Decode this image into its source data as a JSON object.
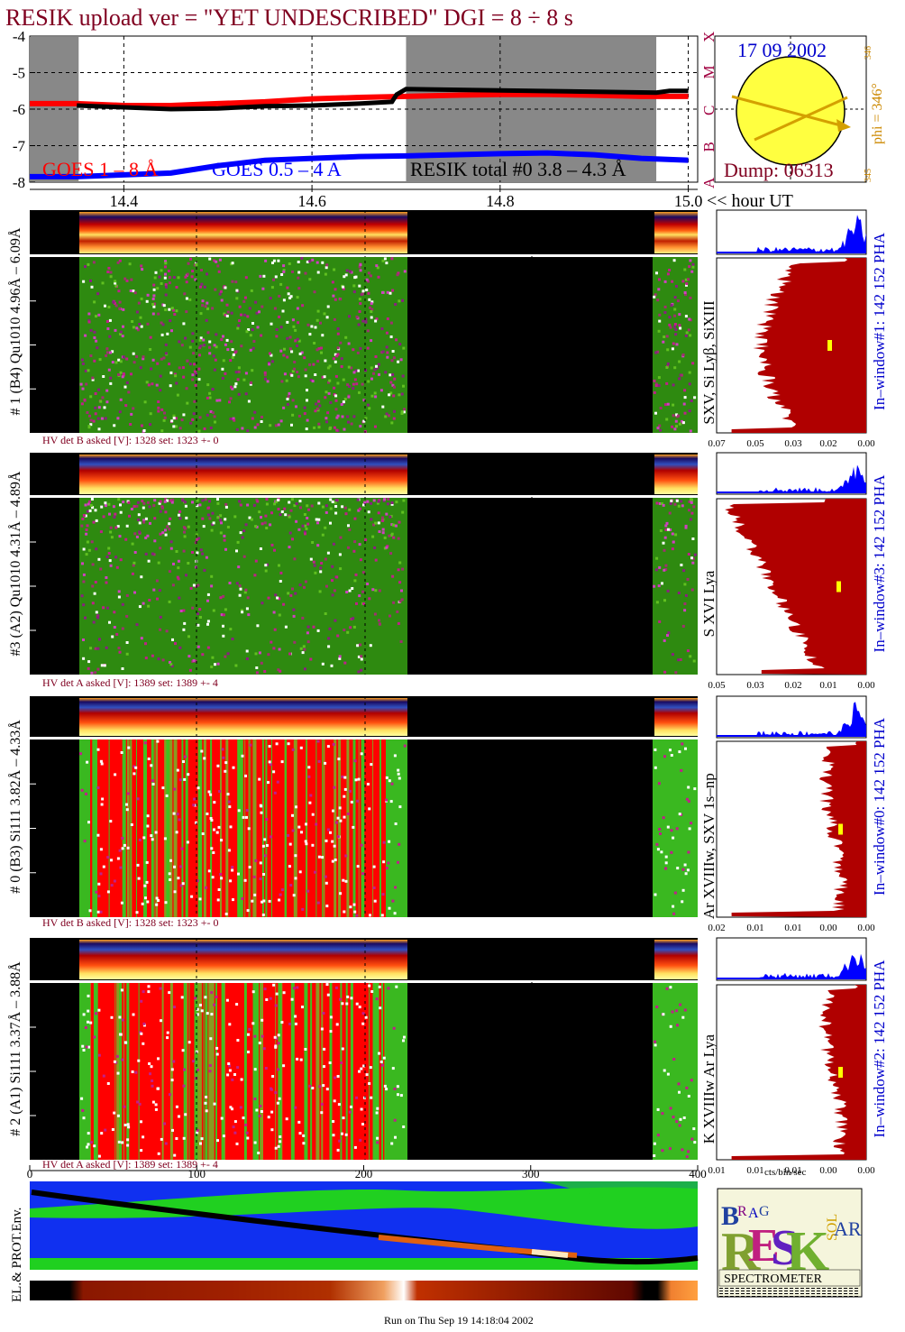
{
  "title": "RESIK upload ver = \"YET UNDESCRIBED\"  DGI =   8 ÷   8 s",
  "footer": "Run on Thu Sep 19 14:18:04 2002",
  "colors": {
    "title": "#800020",
    "goes_long": "#ff0000",
    "goes_short": "#0000ff",
    "resik_total": "#000000",
    "noaa_labels": "#a00040",
    "date_text": "#0000cc",
    "orbit_text": "#cc8800",
    "hist_fill": "#b00000",
    "hist_top": "#0000ff",
    "sun_fill": "#ffff40",
    "arrow": "#d4a000",
    "spectro_red": "#ff0000",
    "spectro_green": "#2ea000"
  },
  "chart_data": [
    {
      "type": "line",
      "title": "",
      "ylim": [
        -8,
        -4
      ],
      "y_ticks": [
        "-4",
        "-5",
        "-6",
        "-7",
        "-8"
      ],
      "goes_class_labels": [
        "X",
        "M",
        "C",
        "B",
        "A"
      ],
      "x_ticks": [
        "14.4",
        "14.6",
        "14.8",
        "15.0"
      ],
      "x_axis_caption": "<< hour UT",
      "xlim": [
        14.3,
        15.01
      ],
      "shaded_intervals": [
        [
          14.3,
          14.352
        ],
        [
          14.7,
          14.966
        ]
      ],
      "series": [
        {
          "name": "GOES 1 – 8 Å",
          "x": [
            14.3,
            14.35,
            14.4,
            14.45,
            14.5,
            14.55,
            14.6,
            14.65,
            14.7,
            14.75,
            14.8,
            14.85,
            14.9,
            14.95,
            15.0
          ],
          "values": [
            -5.85,
            -5.85,
            -5.9,
            -5.9,
            -5.85,
            -5.8,
            -5.72,
            -5.68,
            -5.65,
            -5.62,
            -5.6,
            -5.6,
            -5.62,
            -5.65,
            -5.65
          ]
        },
        {
          "name": "GOES 0.5 – 4 A",
          "x": [
            14.3,
            14.35,
            14.4,
            14.45,
            14.5,
            14.55,
            14.6,
            14.65,
            14.7,
            14.75,
            14.8,
            14.85,
            14.9,
            14.95,
            15.0
          ],
          "values": [
            -7.85,
            -7.85,
            -7.8,
            -7.75,
            -7.55,
            -7.4,
            -7.35,
            -7.3,
            -7.28,
            -7.25,
            -7.22,
            -7.2,
            -7.25,
            -7.35,
            -7.4
          ]
        },
        {
          "name": "RESIK total #0  3.8 – 4.3 Å",
          "x": [
            14.35,
            14.4,
            14.45,
            14.5,
            14.55,
            14.6,
            14.65,
            14.685,
            14.69,
            14.7,
            14.966,
            14.98,
            15.0
          ],
          "values": [
            -5.9,
            -5.95,
            -6.0,
            -5.98,
            -5.92,
            -5.9,
            -5.85,
            -5.8,
            -5.6,
            -5.45,
            -5.55,
            -5.5,
            -5.5
          ]
        }
      ]
    },
    {
      "type": "heatmap",
      "title": "",
      "channel": "# 1 (B4) Qu1010 4.96Å – 6.09Å",
      "line_ids": "SXV, Si Lyβ, SiXIII",
      "hv": "HV det B asked [V]:  1328 set:  1323 +-    0",
      "pha_label": "142 152 PHA",
      "window_label": "In–window#1:",
      "hist_ticks": [
        "0.07",
        "0.05",
        "0.03",
        "0.02",
        "0.00"
      ]
    },
    {
      "type": "heatmap",
      "title": "",
      "channel": "#3 (A2) Qu1010  4.31Å – 4.89Å",
      "line_ids": "S XVI Lya",
      "hv": "HV det A asked [V]:  1389 set:  1389 +-    4",
      "pha_label": "142 152 PHA",
      "window_label": "In–window#3:",
      "hist_ticks": [
        "0.05",
        "0.03",
        "0.02",
        "0.01",
        "0.00"
      ]
    },
    {
      "type": "heatmap",
      "title": "",
      "channel": "# 0 (B3) Si111  3.82Å – 4.33Å",
      "line_ids": "Ar XVIIIw, SXV 1s–np",
      "hv": "HV det B asked [V]:  1328 set:  1323 +-    0",
      "pha_label": "142 152 PHA",
      "window_label": "In–window#0:",
      "hist_ticks": [
        "0.02",
        "0.01",
        "0.01",
        "0.00",
        "0.00"
      ]
    },
    {
      "type": "heatmap",
      "title": "",
      "channel": "# 2 (A1) Si111  3.37Å –  3.88Å",
      "line_ids": "K XVIIIw  Ar Lya",
      "hv": "HV det A asked [V]:  1389 set:  1389 +-    4",
      "pha_label": "142 152 PHA",
      "window_label": "In–window#2:",
      "hist_ticks": [
        "0.01",
        "0.01",
        "0.01",
        "0.00",
        "0.00"
      ],
      "hist_xlabel": "cts/bin/sec",
      "x_ticks": [
        "0",
        "100",
        "200",
        "300",
        "400"
      ]
    }
  ],
  "orbit": {
    "date": "17 09 2002",
    "phi": "phi = 346°",
    "phi_small": "346",
    "small_bottom": "345",
    "dump": "Dump: 06313"
  },
  "env_label": "EL.& PROT.Env.",
  "logo": {
    "letters": "BRAGG RESIK SOLAR",
    "word": "SPECTROMETER"
  }
}
